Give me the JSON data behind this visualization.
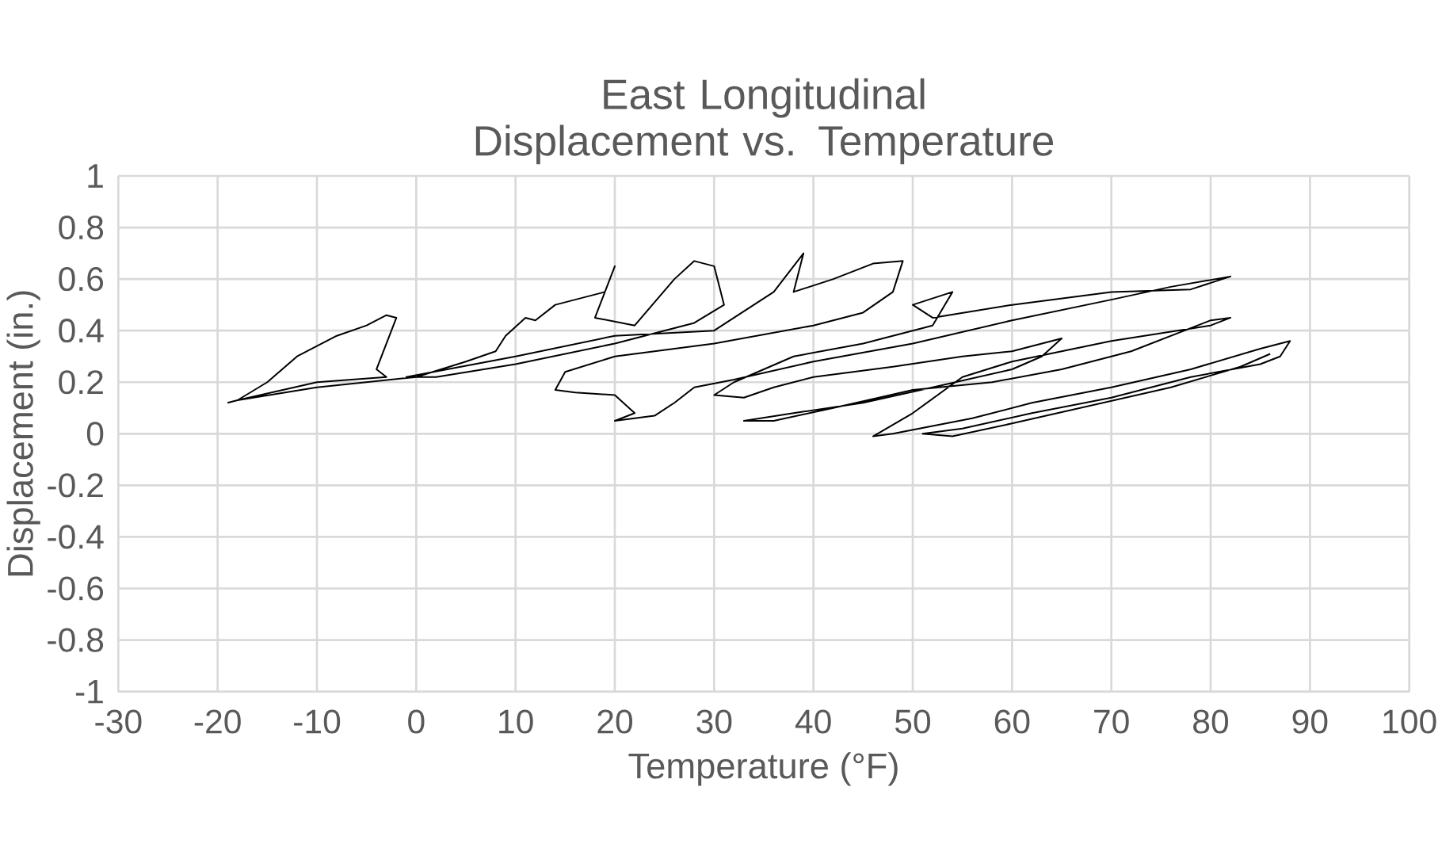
{
  "chart_data": {
    "type": "line",
    "title": "East Longitudinal Displacement vs. Temperature",
    "xlabel": "Temperature (°F)",
    "ylabel": "Displacement (in.)",
    "xlim": [
      -30,
      100
    ],
    "xticks": [
      -30,
      -20,
      -10,
      0,
      10,
      20,
      30,
      40,
      50,
      60,
      70,
      80,
      90,
      100
    ],
    "ylim": [
      -1,
      1
    ],
    "yticks": [
      -1,
      -0.8,
      -0.6,
      -0.4,
      -0.2,
      0,
      0.2,
      0.4,
      0.6,
      0.8,
      1
    ],
    "grid": true,
    "marker": "none",
    "line_style": "solid",
    "x": [
      -19,
      -18,
      -15,
      -12,
      -8,
      -5,
      -3,
      -2,
      -4,
      -3,
      -10,
      -18,
      -10,
      0,
      5,
      8,
      9,
      11,
      12,
      14,
      19,
      20,
      18,
      22,
      26,
      28,
      30,
      31,
      28,
      20,
      10,
      2,
      -1,
      10,
      20,
      30,
      36,
      39,
      38,
      42,
      46,
      49,
      48,
      45,
      40,
      30,
      20,
      15,
      14,
      16,
      20,
      22,
      20,
      24,
      26,
      28,
      32,
      40,
      50,
      60,
      70,
      76,
      82,
      78,
      70,
      60,
      52,
      50,
      54,
      52,
      45,
      38,
      32,
      30,
      33,
      36,
      40,
      48,
      55,
      60,
      65,
      63,
      60,
      52,
      45,
      38,
      33,
      36,
      42,
      50,
      58,
      65,
      72,
      80,
      82,
      80,
      70,
      60,
      55,
      50,
      46,
      48,
      52,
      56,
      62,
      70,
      78,
      85,
      88,
      87,
      85,
      78,
      70,
      62,
      55,
      51,
      54,
      60,
      68,
      76,
      83,
      86
    ],
    "series": [
      {
        "color": "#000000",
        "values": [
          0.12,
          0.13,
          0.2,
          0.3,
          0.38,
          0.42,
          0.46,
          0.45,
          0.25,
          0.22,
          0.2,
          0.13,
          0.18,
          0.22,
          0.28,
          0.32,
          0.38,
          0.45,
          0.44,
          0.5,
          0.55,
          0.65,
          0.45,
          0.42,
          0.6,
          0.67,
          0.65,
          0.5,
          0.43,
          0.35,
          0.27,
          0.22,
          0.22,
          0.3,
          0.38,
          0.4,
          0.55,
          0.7,
          0.55,
          0.6,
          0.66,
          0.67,
          0.55,
          0.47,
          0.42,
          0.35,
          0.3,
          0.24,
          0.17,
          0.16,
          0.15,
          0.08,
          0.05,
          0.07,
          0.12,
          0.18,
          0.21,
          0.28,
          0.35,
          0.44,
          0.52,
          0.57,
          0.61,
          0.56,
          0.55,
          0.5,
          0.45,
          0.5,
          0.55,
          0.42,
          0.35,
          0.3,
          0.2,
          0.15,
          0.14,
          0.18,
          0.22,
          0.26,
          0.3,
          0.32,
          0.37,
          0.3,
          0.25,
          0.18,
          0.12,
          0.08,
          0.05,
          0.05,
          0.1,
          0.17,
          0.2,
          0.25,
          0.32,
          0.44,
          0.45,
          0.42,
          0.36,
          0.28,
          0.22,
          0.08,
          -0.01,
          0.0,
          0.03,
          0.06,
          0.12,
          0.18,
          0.25,
          0.33,
          0.36,
          0.3,
          0.27,
          0.22,
          0.14,
          0.08,
          0.02,
          0.0,
          -0.01,
          0.04,
          0.11,
          0.18,
          0.26,
          0.31
        ]
      }
    ]
  }
}
